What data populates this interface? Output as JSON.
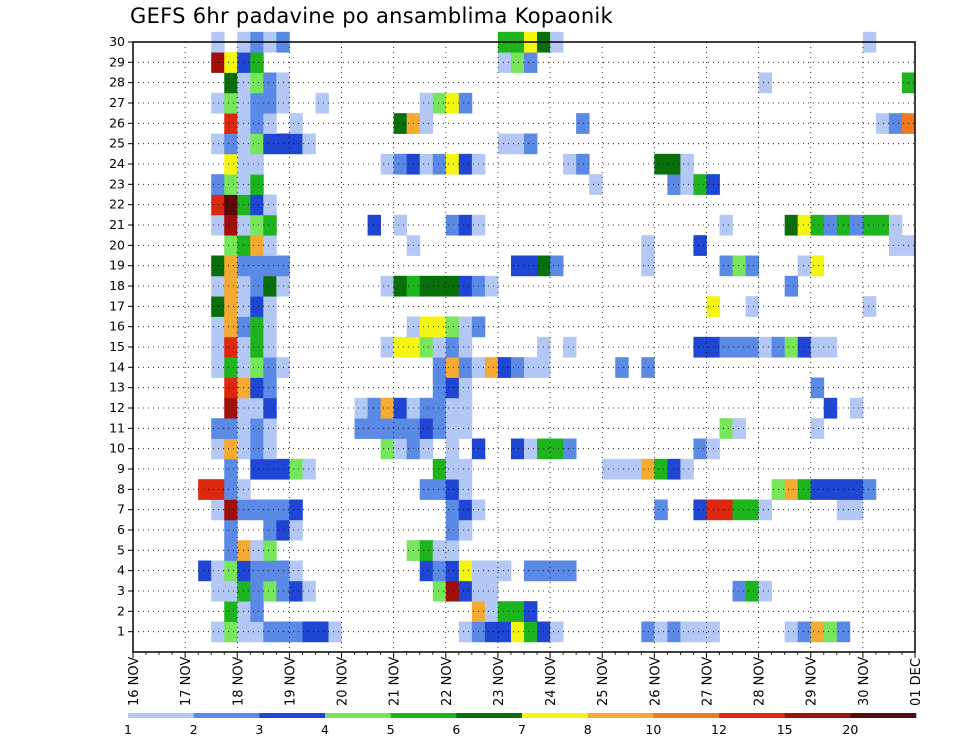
{
  "chart_data": {
    "type": "heatmap",
    "title": "GEFS 6hr padavine po ansamblima Kopaonik",
    "x_tick_labels": [
      "16 NOV",
      "17 NOV",
      "18 NOV",
      "19 NOV",
      "20 NOV",
      "21 NOV",
      "22 NOV",
      "23 NOV",
      "24 NOV",
      "25 NOV",
      "26 NOV",
      "27 NOV",
      "28 NOV",
      "29 NOV",
      "30 NOV",
      "01 DEC"
    ],
    "y_tick_labels": [
      "1",
      "2",
      "3",
      "4",
      "5",
      "6",
      "7",
      "8",
      "9",
      "10",
      "11",
      "12",
      "13",
      "14",
      "15",
      "16",
      "17",
      "18",
      "19",
      "20",
      "21",
      "22",
      "23",
      "24",
      "25",
      "26",
      "27",
      "28",
      "29",
      "30"
    ],
    "x_range": [
      "2021-11-16T00",
      "2021-12-01T00"
    ],
    "time_step_hours": 6,
    "y_range": [
      0,
      30
    ],
    "grid": "dotted",
    "colorbar": {
      "labels": [
        "1",
        "2",
        "3",
        "4",
        "5",
        "6",
        "7",
        "8",
        "10",
        "12",
        "15",
        "20"
      ],
      "colors": [
        "#b4c8f5",
        "#5a8ae6",
        "#1e46d2",
        "#78e65a",
        "#1eb41e",
        "#0a6e0a",
        "#f5f514",
        "#f5aa32",
        "#f0781e",
        "#dc280f",
        "#a00f0a",
        "#5a0a0a"
      ]
    },
    "palette": {
      "L": "#b4c8f5",
      "B": "#5a8ae6",
      "D": "#1e46d2",
      "g": "#78e65a",
      "G": "#1eb41e",
      "K": "#0a6e0a",
      "Y": "#f5f514",
      "O": "#f5aa32",
      "o": "#f0781e",
      "R": "#dc280f",
      "M": "#a00f0a",
      "X": "#5a0a0a"
    },
    "legend_codes": "LBDgGKYOoRMX",
    "runs": [
      {
        "start": "2021-11-17T12",
        "cells": "LgLLBBBDDL.........LBDDYGDL......BLBLLL.....LBOgB......LL.......L...........LL"
      },
      {
        "start": "2021-11-17T18",
        "cells": "GLB................OLGGD"
      },
      {
        "start": "2021-11-17T12",
        "cells": "LLGBgBDL.........gMDLL..................BGL"
      },
      {
        "start": "2021-11-17T06",
        "cells": "DLgDBBBL.........DBDYLLL.BBBB.......................................L"
      },
      {
        "start": "2021-11-17T18",
        "cells": "BOLg..........gGLL"
      },
      {
        "start": "2021-11-17T18",
        "cells": "B..BDL...........BL"
      },
      {
        "start": "2021-11-17T12",
        "cells": "LMBBBBD...........BDL.............B..DRRGGL.....LL"
      },
      {
        "start": "2021-11-17T06",
        "cells": "RRBL.............BBDL.......................gOGDDDDB"
      },
      {
        "start": "2021-11-17T18",
        "cells": "B.DDDgL.........GLL..........LLLOGDL"
      },
      {
        "start": "2021-11-17T12",
        "cells": "LOLBL........gLBL.L.D..DLGGB.........BL"
      },
      {
        "start": "2021-11-17T12",
        "cells": "BBLBL......BBBBBDBLL...................gL.....L"
      },
      {
        "start": "2021-11-17T18",
        "cells": "MLLD......LBODLBBLL...........................D.L.....L"
      },
      {
        "start": "2021-11-17T18",
        "cells": "RODB............BDL..........................B"
      },
      {
        "start": "2021-11-17T12",
        "cells": "LGLgBL...........BOBLODBLL.....B.B........................B"
      },
      {
        "start": "2021-11-17T12",
        "cells": "LRLGL........LYYgLBL.....L.L.........DDBBBLBgDLL"
      },
      {
        "start": "2021-11-17T12",
        "cells": "LOBGL..........LYYgLB"
      },
      {
        "start": "2021-11-17T12",
        "cells": "KOLDL.................................Y..L........L......L..........L..........oL"
      },
      {
        "start": "2021-11-17T12",
        "cells": "LOLBKL.......LKGKKKDBL......................B"
      },
      {
        "start": "2021-11-17T12",
        "cells": "KOBBBB.................DDKB......L.....BgB...LY"
      },
      {
        "start": "2021-11-17T18",
        "cells": "gGOL..........L.................L...D..............LLLLL"
      },
      {
        "start": "2021-11-17T12",
        "cells": "LMLgG.......D.L...BDL..................L....KYGBGBGGL.GOG"
      },
      {
        "start": "2021-11-17T12",
        "cells": "RXGDL"
      },
      {
        "start": "2021-11-17T12",
        "cells": "BgLG.........................L.....BLGD...................................................BLGD"
      },
      {
        "start": "2021-11-17T18",
        "cells": "YLL.........LBDLBYDL......LB.....KKL"
      },
      {
        "start": "2021-11-17T12",
        "cells": "LBLgDDDL..............LLB"
      },
      {
        "start": "2021-11-17T18",
        "cells": "RLBL.L.......KOL...........B......................LBoOLDB.....................L"
      },
      {
        "start": "2021-11-17T12",
        "cells": "LgLBBL..L.......LgYB"
      },
      {
        "start": "2021-11-17T18",
        "cells": "KLgBL....................................L..........GRYLBB........LL"
      },
      {
        "start": "2021-11-17T12",
        "cells": "MYDG..................LgB"
      },
      {
        "start": "2021-11-17T12",
        "cells": "L.LBLB................GGYKL.......................L....................LLB"
      }
    ]
  }
}
